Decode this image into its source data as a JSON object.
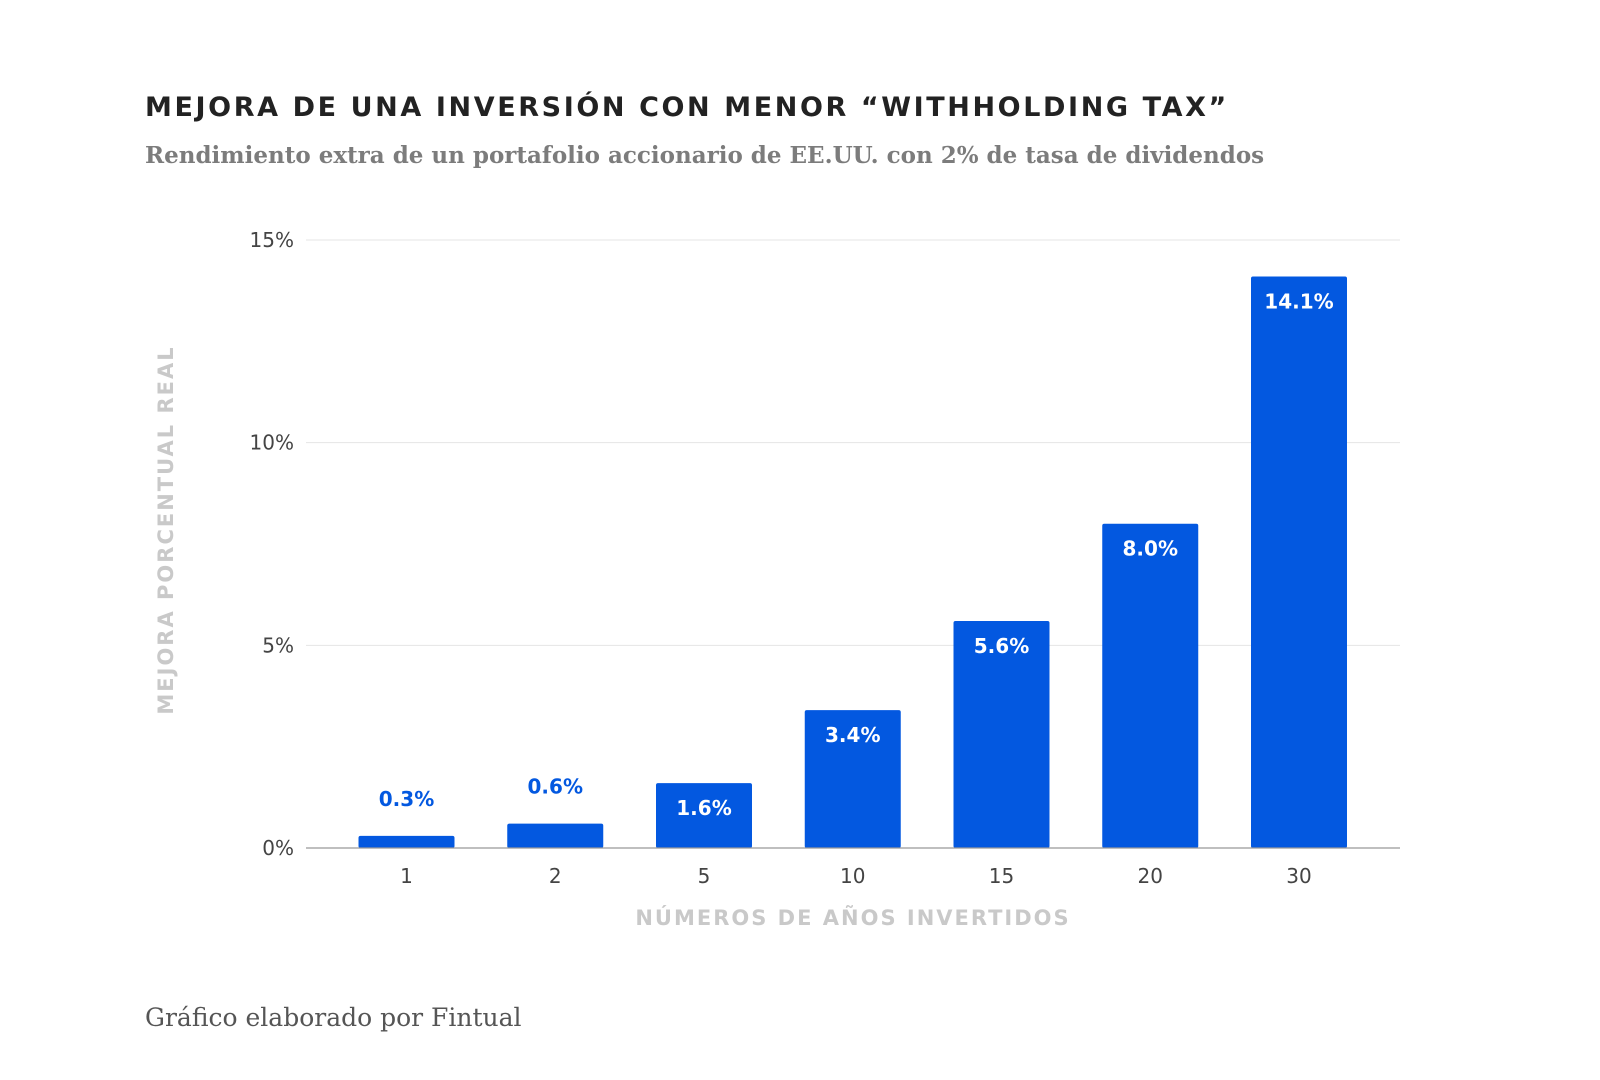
{
  "title": "MEJORA DE UNA INVERSIÓN CON MENOR “WITHHOLDING TAX”",
  "subtitle": "Rendimiento extra de un portafolio accionario de EE.UU. con 2% de tasa de dividendos",
  "credit": "Gráfico elaborado por Fintual",
  "colors": {
    "bar": "#0358e0",
    "label_inside": "#ffffff",
    "label_outside": "#0358e0",
    "grid": "#e4e4e4",
    "baseline": "#999999"
  },
  "chart_data": {
    "type": "bar",
    "categories": [
      "1",
      "2",
      "5",
      "10",
      "15",
      "20",
      "30"
    ],
    "values": [
      0.3,
      0.6,
      1.6,
      3.4,
      5.6,
      8.0,
      14.1
    ],
    "data_labels": [
      "0.3%",
      "0.6%",
      "1.6%",
      "3.4%",
      "5.6%",
      "8.0%",
      "14.1%"
    ],
    "xlabel": "NÚMEROS DE AÑOS INVERTIDOS",
    "ylabel": "MEJORA PORCENTUAL REAL",
    "ylim": [
      0,
      15
    ],
    "yticks": [
      0,
      5,
      10,
      15
    ],
    "ytick_labels": [
      "0%",
      "5%",
      "10%",
      "15%"
    ],
    "grid": true
  }
}
